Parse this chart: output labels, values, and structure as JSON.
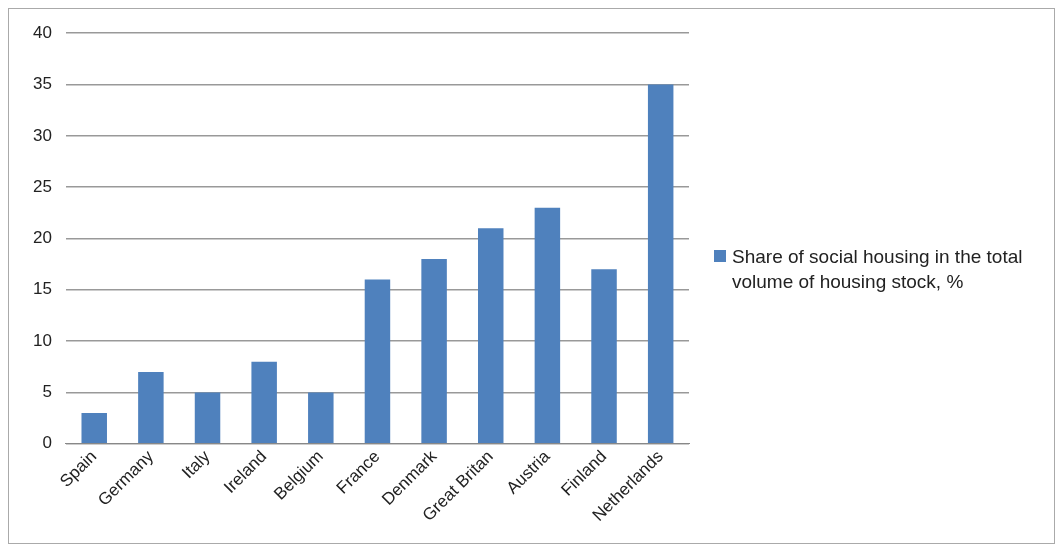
{
  "chart_data": {
    "type": "bar",
    "categories": [
      "Spain",
      "Germany",
      "Italy",
      "Ireland",
      "Belgium",
      "France",
      "Denmark",
      "Great Britan",
      "Austria",
      "Finland",
      "Netherlands"
    ],
    "series": [
      {
        "name": "Share of social housing in the total volume of housing stock, %",
        "color": "#4f81bd",
        "values": [
          3,
          7,
          5,
          8,
          5,
          16,
          18,
          21,
          23,
          17,
          35
        ]
      }
    ],
    "ylim": [
      0,
      40
    ],
    "yticks": [
      0,
      5,
      10,
      15,
      20,
      25,
      30,
      35,
      40
    ],
    "grid": "y",
    "legend": "right"
  }
}
